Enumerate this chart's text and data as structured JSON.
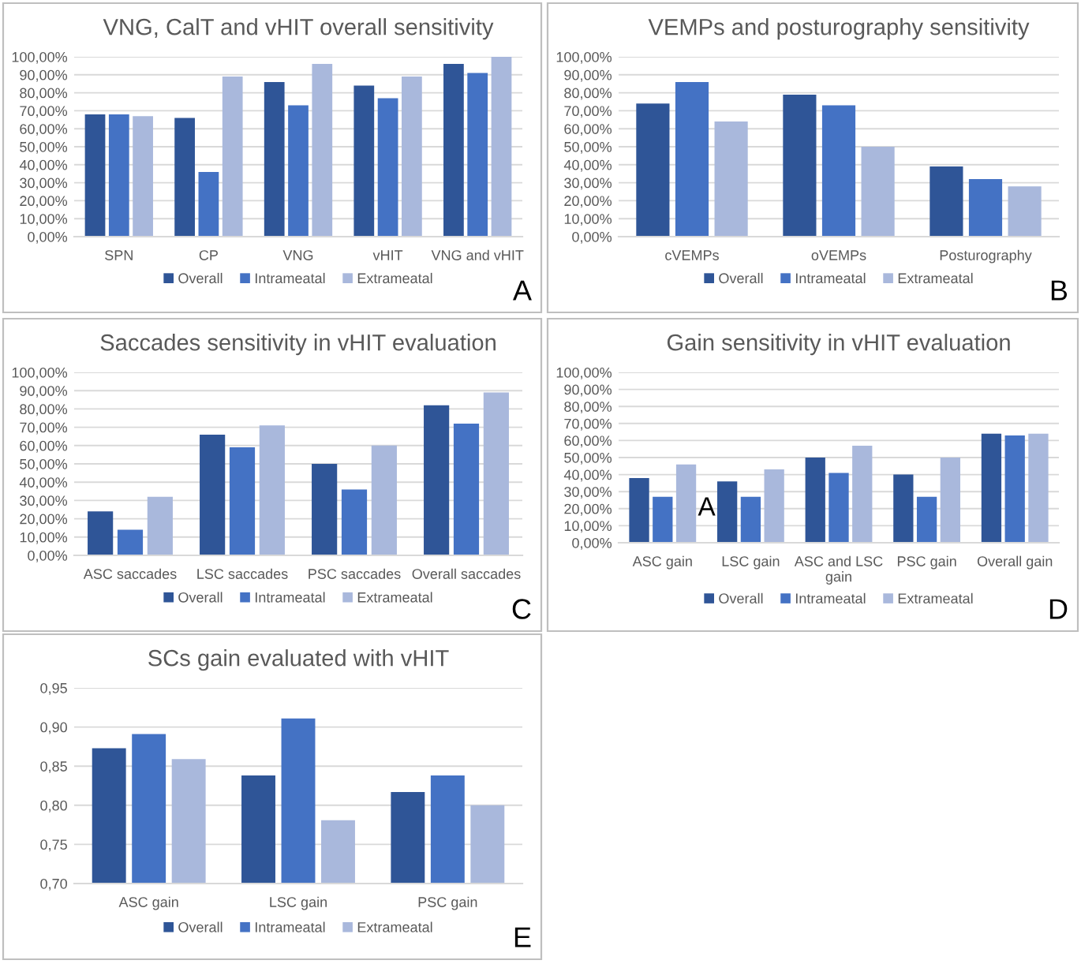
{
  "chart_data": [
    {
      "type": "bar",
      "title": "VNG, CalT and vHIT overall sensitivity",
      "categories": [
        "SPN",
        "CP",
        "VNG",
        "vHIT",
        "VNG and vHIT"
      ],
      "series": [
        {
          "name": "Overall",
          "color": "#2f5597",
          "values": [
            68,
            66,
            86,
            84,
            96
          ]
        },
        {
          "name": "Intrameatal",
          "color": "#4472c4",
          "values": [
            68,
            36,
            73,
            77,
            91
          ]
        },
        {
          "name": "Extrameatal",
          "color": "#a9b8dc",
          "values": [
            67,
            89,
            96,
            89,
            100
          ]
        }
      ],
      "ylim": [
        0,
        100
      ],
      "yticks": [
        {
          "value": 0,
          "label": "0,00%"
        },
        {
          "value": 10,
          "label": "10,00%"
        },
        {
          "value": 20,
          "label": "20,00%"
        },
        {
          "value": 30,
          "label": "30,00%"
        },
        {
          "value": 40,
          "label": "40,00%"
        },
        {
          "value": 50,
          "label": "50,00%"
        },
        {
          "value": 60,
          "label": "60,00%"
        },
        {
          "value": 70,
          "label": "70,00%"
        },
        {
          "value": 80,
          "label": "80,00%"
        },
        {
          "value": 90,
          "label": "90,00%"
        },
        {
          "value": 100,
          "label": "100,00%"
        }
      ],
      "grid": "y",
      "legend": "bottom",
      "annotations": [
        "A"
      ]
    },
    {
      "type": "bar",
      "title": "VEMPs and posturography sensitivity",
      "categories": [
        "cVEMPs",
        "oVEMPs",
        "Posturography"
      ],
      "series": [
        {
          "name": "Overall",
          "color": "#2f5597",
          "values": [
            74,
            79,
            39
          ]
        },
        {
          "name": "Intrameatal",
          "color": "#4472c4",
          "values": [
            86,
            73,
            32
          ]
        },
        {
          "name": "Extrameatal",
          "color": "#a9b8dc",
          "values": [
            64,
            50,
            28
          ]
        }
      ],
      "ylim": [
        0,
        100
      ],
      "yticks": [
        {
          "value": 0,
          "label": "0,00%"
        },
        {
          "value": 10,
          "label": "10,00%"
        },
        {
          "value": 20,
          "label": "20,00%"
        },
        {
          "value": 30,
          "label": "30,00%"
        },
        {
          "value": 40,
          "label": "40,00%"
        },
        {
          "value": 50,
          "label": "50,00%"
        },
        {
          "value": 60,
          "label": "60,00%"
        },
        {
          "value": 70,
          "label": "70,00%"
        },
        {
          "value": 80,
          "label": "80,00%"
        },
        {
          "value": 90,
          "label": "90,00%"
        },
        {
          "value": 100,
          "label": "100,00%"
        }
      ],
      "grid": "y",
      "legend": "bottom",
      "annotations": [
        "B"
      ]
    },
    {
      "type": "bar",
      "title": "Saccades sensitivity in vHIT evaluation",
      "categories": [
        "ASC saccades",
        "LSC saccades",
        "PSC saccades",
        "Overall saccades"
      ],
      "series": [
        {
          "name": "Overall",
          "color": "#2f5597",
          "values": [
            24,
            66,
            50,
            82
          ]
        },
        {
          "name": "Intrameatal",
          "color": "#4472c4",
          "values": [
            14,
            59,
            36,
            72
          ]
        },
        {
          "name": "Extrameatal",
          "color": "#a9b8dc",
          "values": [
            32,
            71,
            60,
            89
          ]
        }
      ],
      "ylim": [
        0,
        100
      ],
      "yticks": [
        {
          "value": 0,
          "label": "0,00%"
        },
        {
          "value": 10,
          "label": "10,00%"
        },
        {
          "value": 20,
          "label": "20,00%"
        },
        {
          "value": 30,
          "label": "30,00%"
        },
        {
          "value": 40,
          "label": "40,00%"
        },
        {
          "value": 50,
          "label": "50,00%"
        },
        {
          "value": 60,
          "label": "60,00%"
        },
        {
          "value": 70,
          "label": "70,00%"
        },
        {
          "value": 80,
          "label": "80,00%"
        },
        {
          "value": 90,
          "label": "90,00%"
        },
        {
          "value": 100,
          "label": "100,00%"
        }
      ],
      "grid": "y",
      "legend": "bottom",
      "annotations": [
        "C"
      ]
    },
    {
      "type": "bar",
      "title": "Gain sensitivity in vHIT evaluation",
      "categories": [
        "ASC gain",
        "LSC gain",
        "ASC and LSC gain",
        "PSC gain",
        "Overall gain"
      ],
      "series": [
        {
          "name": "Overall",
          "color": "#2f5597",
          "values": [
            38,
            36,
            50,
            40,
            64
          ]
        },
        {
          "name": "Intrameatal",
          "color": "#4472c4",
          "values": [
            27,
            27,
            41,
            27,
            63
          ]
        },
        {
          "name": "Extrameatal",
          "color": "#a9b8dc",
          "values": [
            46,
            43,
            57,
            50,
            64
          ]
        }
      ],
      "ylim": [
        0,
        100
      ],
      "yticks": [
        {
          "value": 0,
          "label": "0,00%"
        },
        {
          "value": 10,
          "label": "10,00%"
        },
        {
          "value": 20,
          "label": "20,00%"
        },
        {
          "value": 30,
          "label": "30,00%"
        },
        {
          "value": 40,
          "label": "40,00%"
        },
        {
          "value": 50,
          "label": "50,00%"
        },
        {
          "value": 60,
          "label": "60,00%"
        },
        {
          "value": 70,
          "label": "70,00%"
        },
        {
          "value": 80,
          "label": "80,00%"
        },
        {
          "value": 90,
          "label": "90,00%"
        },
        {
          "value": 100,
          "label": "100,00%"
        }
      ],
      "grid": "y",
      "legend": "bottom",
      "annotations": [
        "D",
        "A"
      ]
    },
    {
      "type": "bar",
      "title": "SCs gain evaluated with vHIT",
      "categories": [
        "ASC gain",
        "LSC gain",
        "PSC gain"
      ],
      "series": [
        {
          "name": "Overall",
          "color": "#2f5597",
          "values": [
            0.873,
            0.838,
            0.817
          ]
        },
        {
          "name": "Intrameatal",
          "color": "#4472c4",
          "values": [
            0.891,
            0.911,
            0.838
          ]
        },
        {
          "name": "Extrameatal",
          "color": "#a9b8dc",
          "values": [
            0.859,
            0.781,
            0.8
          ]
        }
      ],
      "ylim": [
        0.7,
        0.95
      ],
      "yticks": [
        {
          "value": 0.7,
          "label": "0,70"
        },
        {
          "value": 0.75,
          "label": "0,75"
        },
        {
          "value": 0.8,
          "label": "0,80"
        },
        {
          "value": 0.85,
          "label": "0,85"
        },
        {
          "value": 0.9,
          "label": "0,90"
        },
        {
          "value": 0.95,
          "label": "0,95"
        }
      ],
      "grid": "y",
      "legend": "bottom",
      "annotations": [
        "E"
      ]
    }
  ]
}
